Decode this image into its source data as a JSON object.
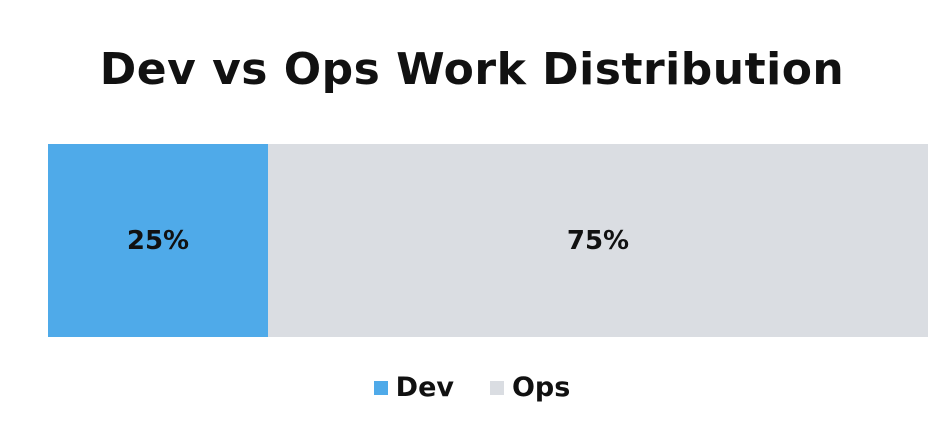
{
  "chart_data": {
    "type": "bar",
    "orientation": "horizontal-stacked-100",
    "title": "Dev vs Ops Work Distribution",
    "xlabel": "",
    "ylabel": "",
    "grid": false,
    "legend_position": "bottom-center",
    "series": [
      {
        "name": "Dev",
        "value": 25,
        "label": "25%",
        "color": "#4faae9"
      },
      {
        "name": "Ops",
        "value": 75,
        "label": "75%",
        "color": "#dadde2"
      }
    ]
  }
}
